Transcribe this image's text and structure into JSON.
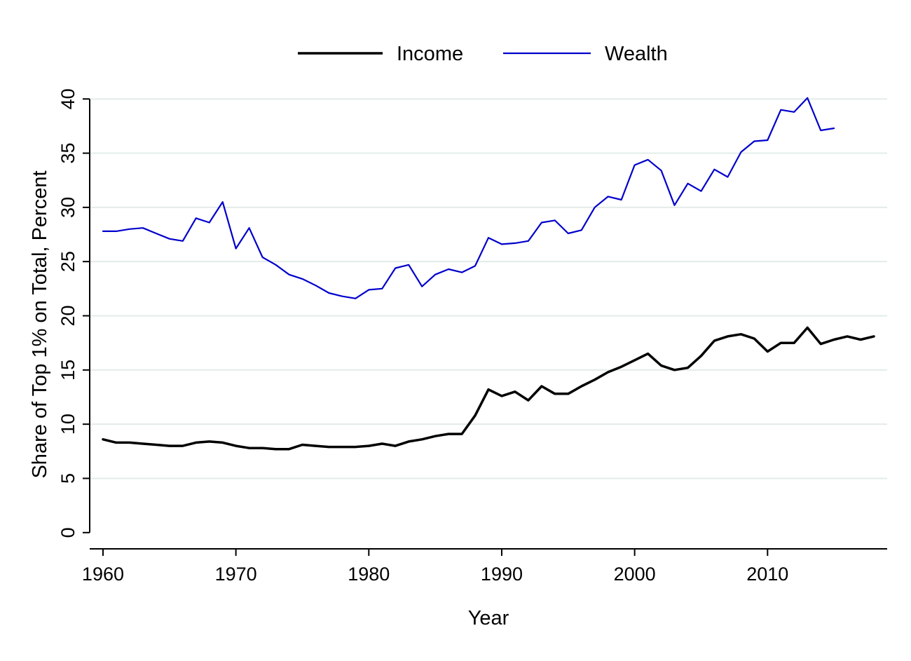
{
  "chart_data": {
    "type": "line",
    "title": "",
    "xlabel": "Year",
    "ylabel": "Share of Top 1% on Total, Percent",
    "xlim": [
      1959,
      2019
    ],
    "ylim": [
      -1.5,
      41.5
    ],
    "x_ticks": [
      1960,
      1970,
      1980,
      1990,
      2000,
      2010
    ],
    "y_ticks": [
      0,
      5,
      10,
      15,
      20,
      25,
      30,
      35,
      40
    ],
    "grid": "horizontal",
    "legend_position": "top-center",
    "series": [
      {
        "name": "Income",
        "color": "#000000",
        "x": [
          1960,
          1961,
          1962,
          1963,
          1964,
          1965,
          1966,
          1967,
          1968,
          1969,
          1970,
          1971,
          1972,
          1973,
          1974,
          1975,
          1976,
          1977,
          1978,
          1979,
          1980,
          1981,
          1982,
          1983,
          1984,
          1985,
          1986,
          1987,
          1988,
          1989,
          1990,
          1991,
          1992,
          1993,
          1994,
          1995,
          1996,
          1997,
          1998,
          1999,
          2000,
          2001,
          2002,
          2003,
          2004,
          2005,
          2006,
          2007,
          2008,
          2009,
          2010,
          2011,
          2012,
          2013,
          2014,
          2015,
          2016,
          2017,
          2018
        ],
        "values": [
          8.6,
          8.3,
          8.3,
          8.2,
          8.1,
          8.0,
          8.0,
          8.3,
          8.4,
          8.3,
          8.0,
          7.8,
          7.8,
          7.7,
          7.7,
          8.1,
          8.0,
          7.9,
          7.9,
          7.9,
          8.0,
          8.2,
          8.0,
          8.4,
          8.6,
          8.9,
          9.1,
          9.1,
          10.8,
          13.2,
          12.6,
          13.0,
          12.2,
          13.5,
          12.8,
          12.8,
          13.5,
          14.1,
          14.8,
          15.3,
          15.9,
          16.5,
          15.4,
          15.0,
          15.2,
          16.3,
          17.7,
          18.1,
          18.3,
          17.9,
          16.7,
          17.5,
          17.5,
          18.9,
          17.4,
          17.8,
          18.1,
          17.8,
          18.1
        ]
      },
      {
        "name": "Wealth",
        "color": "#0000cc",
        "x": [
          1960,
          1961,
          1962,
          1963,
          1964,
          1965,
          1966,
          1967,
          1968,
          1969,
          1970,
          1971,
          1972,
          1973,
          1974,
          1975,
          1976,
          1977,
          1978,
          1979,
          1980,
          1981,
          1982,
          1983,
          1984,
          1985,
          1986,
          1987,
          1988,
          1989,
          1990,
          1991,
          1992,
          1993,
          1994,
          1995,
          1996,
          1997,
          1998,
          1999,
          2000,
          2001,
          2002,
          2003,
          2004,
          2005,
          2006,
          2007,
          2008,
          2009,
          2010,
          2011,
          2012,
          2013,
          2014,
          2015
        ],
        "values": [
          27.8,
          27.8,
          28.0,
          28.1,
          27.6,
          27.1,
          26.9,
          29.0,
          28.6,
          30.5,
          26.2,
          28.1,
          25.4,
          24.7,
          23.8,
          23.4,
          22.8,
          22.1,
          21.8,
          21.6,
          22.4,
          22.5,
          24.4,
          24.7,
          22.7,
          23.8,
          24.3,
          24.0,
          24.6,
          27.2,
          26.6,
          26.7,
          26.9,
          28.6,
          28.8,
          27.6,
          27.9,
          30.0,
          31.0,
          30.7,
          33.9,
          34.4,
          33.4,
          30.2,
          32.2,
          31.5,
          33.5,
          32.8,
          35.1,
          36.1,
          36.2,
          39.0,
          38.8,
          40.1,
          37.1,
          37.3
        ]
      }
    ]
  }
}
